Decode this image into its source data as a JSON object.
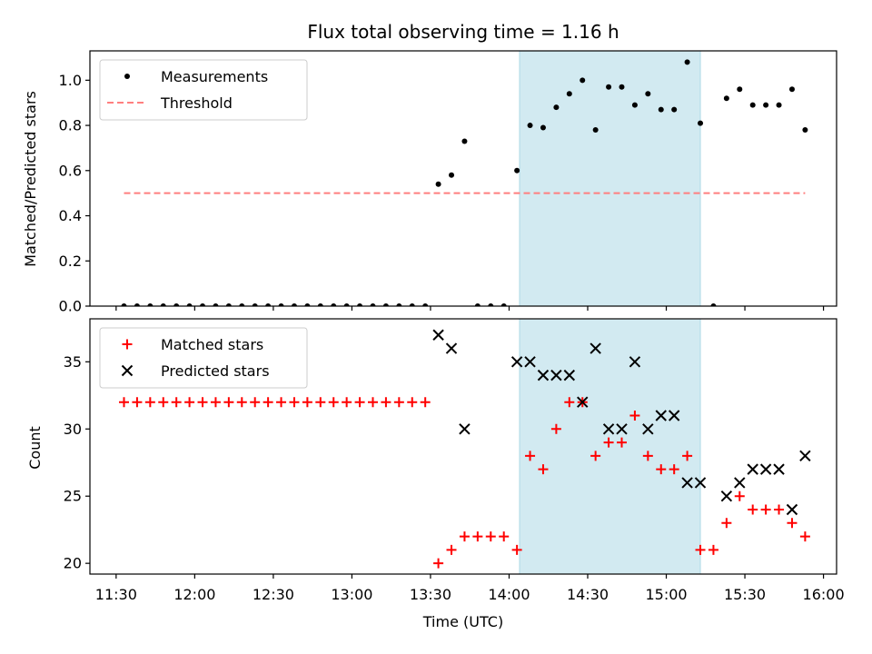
{
  "figure_title": "Flux total observing time = 1.16 h",
  "chart_data": [
    {
      "type": "scatter",
      "title": "Flux total observing time = 1.16 h",
      "xlabel": "",
      "ylabel": "Matched/Predicted stars",
      "x_axis_type": "time",
      "xlim": [
        "11:20",
        "16:05"
      ],
      "ylim": [
        0,
        1.13
      ],
      "yticks": [
        0.0,
        0.2,
        0.4,
        0.6,
        0.8,
        1.0
      ],
      "ytick_labels": [
        "0.0",
        "0.2",
        "0.4",
        "0.6",
        "0.8",
        "1.0"
      ],
      "highlight_band": {
        "x_start": "14:04",
        "x_end": "15:13",
        "color": "#add8e6"
      },
      "legend_position": "upper-left",
      "series": [
        {
          "name": "Measurements",
          "marker": "dot",
          "color": "#000000",
          "points": [
            [
              "11:33",
              0.0
            ],
            [
              "11:38",
              0.0
            ],
            [
              "11:43",
              0.0
            ],
            [
              "11:48",
              0.0
            ],
            [
              "11:53",
              0.0
            ],
            [
              "11:58",
              0.0
            ],
            [
              "12:03",
              0.0
            ],
            [
              "12:08",
              0.0
            ],
            [
              "12:13",
              0.0
            ],
            [
              "12:18",
              0.0
            ],
            [
              "12:23",
              0.0
            ],
            [
              "12:28",
              0.0
            ],
            [
              "12:33",
              0.0
            ],
            [
              "12:38",
              0.0
            ],
            [
              "12:43",
              0.0
            ],
            [
              "12:48",
              0.0
            ],
            [
              "12:53",
              0.0
            ],
            [
              "12:58",
              0.0
            ],
            [
              "13:03",
              0.0
            ],
            [
              "13:08",
              0.0
            ],
            [
              "13:13",
              0.0
            ],
            [
              "13:18",
              0.0
            ],
            [
              "13:23",
              0.0
            ],
            [
              "13:28",
              0.0
            ],
            [
              "13:33",
              0.54
            ],
            [
              "13:38",
              0.58
            ],
            [
              "13:43",
              0.73
            ],
            [
              "13:48",
              0.0
            ],
            [
              "13:53",
              0.0
            ],
            [
              "13:58",
              0.0
            ],
            [
              "14:03",
              0.6
            ],
            [
              "14:08",
              0.8
            ],
            [
              "14:13",
              0.79
            ],
            [
              "14:18",
              0.88
            ],
            [
              "14:23",
              0.94
            ],
            [
              "14:28",
              1.0
            ],
            [
              "14:33",
              0.78
            ],
            [
              "14:38",
              0.97
            ],
            [
              "14:43",
              0.97
            ],
            [
              "14:48",
              0.89
            ],
            [
              "14:53",
              0.94
            ],
            [
              "14:58",
              0.87
            ],
            [
              "15:03",
              0.87
            ],
            [
              "15:08",
              1.08
            ],
            [
              "15:13",
              0.81
            ],
            [
              "15:18",
              0.0
            ],
            [
              "15:23",
              0.92
            ],
            [
              "15:28",
              0.96
            ],
            [
              "15:33",
              0.89
            ],
            [
              "15:38",
              0.89
            ],
            [
              "15:43",
              0.89
            ],
            [
              "15:48",
              0.96
            ],
            [
              "15:53",
              0.78
            ]
          ]
        },
        {
          "name": "Threshold",
          "marker": "dashed-line",
          "color": "#ff7f7f",
          "points": [
            [
              "11:33",
              0.5
            ],
            [
              "15:53",
              0.5
            ]
          ]
        }
      ]
    },
    {
      "type": "scatter",
      "xlabel": "Time (UTC)",
      "ylabel": "Count",
      "x_axis_type": "time",
      "xlim": [
        "11:20",
        "16:05"
      ],
      "ylim": [
        19.2,
        38.2
      ],
      "xticks": [
        "11:30",
        "12:00",
        "12:30",
        "13:00",
        "13:30",
        "14:00",
        "14:30",
        "15:00",
        "15:30",
        "16:00"
      ],
      "xtick_labels": [
        "11:30",
        "12:00",
        "12:30",
        "13:00",
        "13:30",
        "14:00",
        "14:30",
        "15:00",
        "15:30",
        "16:00"
      ],
      "yticks": [
        20,
        25,
        30,
        35
      ],
      "ytick_labels": [
        "20",
        "25",
        "30",
        "35"
      ],
      "highlight_band": {
        "x_start": "14:04",
        "x_end": "15:13",
        "color": "#add8e6"
      },
      "legend_position": "upper-left",
      "series": [
        {
          "name": "Matched stars",
          "marker": "plus",
          "color": "#ff0000",
          "points": [
            [
              "11:33",
              32
            ],
            [
              "11:38",
              32
            ],
            [
              "11:43",
              32
            ],
            [
              "11:48",
              32
            ],
            [
              "11:53",
              32
            ],
            [
              "11:58",
              32
            ],
            [
              "12:03",
              32
            ],
            [
              "12:08",
              32
            ],
            [
              "12:13",
              32
            ],
            [
              "12:18",
              32
            ],
            [
              "12:23",
              32
            ],
            [
              "12:28",
              32
            ],
            [
              "12:33",
              32
            ],
            [
              "12:38",
              32
            ],
            [
              "12:43",
              32
            ],
            [
              "12:48",
              32
            ],
            [
              "12:53",
              32
            ],
            [
              "12:58",
              32
            ],
            [
              "13:03",
              32
            ],
            [
              "13:08",
              32
            ],
            [
              "13:13",
              32
            ],
            [
              "13:18",
              32
            ],
            [
              "13:23",
              32
            ],
            [
              "13:28",
              32
            ],
            [
              "13:33",
              20
            ],
            [
              "13:38",
              21
            ],
            [
              "13:43",
              22
            ],
            [
              "13:48",
              22
            ],
            [
              "13:53",
              22
            ],
            [
              "13:58",
              22
            ],
            [
              "14:03",
              21
            ],
            [
              "14:08",
              28
            ],
            [
              "14:13",
              27
            ],
            [
              "14:18",
              30
            ],
            [
              "14:23",
              32
            ],
            [
              "14:28",
              32
            ],
            [
              "14:33",
              28
            ],
            [
              "14:38",
              29
            ],
            [
              "14:43",
              29
            ],
            [
              "14:48",
              31
            ],
            [
              "14:53",
              28
            ],
            [
              "14:58",
              27
            ],
            [
              "15:03",
              27
            ],
            [
              "15:08",
              28
            ],
            [
              "15:13",
              21
            ],
            [
              "15:18",
              21
            ],
            [
              "15:23",
              23
            ],
            [
              "15:28",
              25
            ],
            [
              "15:33",
              24
            ],
            [
              "15:38",
              24
            ],
            [
              "15:43",
              24
            ],
            [
              "15:48",
              23
            ],
            [
              "15:53",
              22
            ]
          ]
        },
        {
          "name": "Predicted stars",
          "marker": "x",
          "color": "#000000",
          "points": [
            [
              "13:33",
              37
            ],
            [
              "13:38",
              36
            ],
            [
              "13:43",
              30
            ],
            [
              "14:03",
              35
            ],
            [
              "14:08",
              35
            ],
            [
              "14:13",
              34
            ],
            [
              "14:18",
              34
            ],
            [
              "14:23",
              34
            ],
            [
              "14:28",
              32
            ],
            [
              "14:33",
              36
            ],
            [
              "14:38",
              30
            ],
            [
              "14:43",
              30
            ],
            [
              "14:48",
              35
            ],
            [
              "14:53",
              30
            ],
            [
              "14:58",
              31
            ],
            [
              "15:03",
              31
            ],
            [
              "15:08",
              26
            ],
            [
              "15:13",
              26
            ],
            [
              "15:23",
              25
            ],
            [
              "15:28",
              26
            ],
            [
              "15:33",
              27
            ],
            [
              "15:38",
              27
            ],
            [
              "15:43",
              27
            ],
            [
              "15:48",
              24
            ],
            [
              "15:53",
              28
            ]
          ]
        }
      ]
    }
  ]
}
